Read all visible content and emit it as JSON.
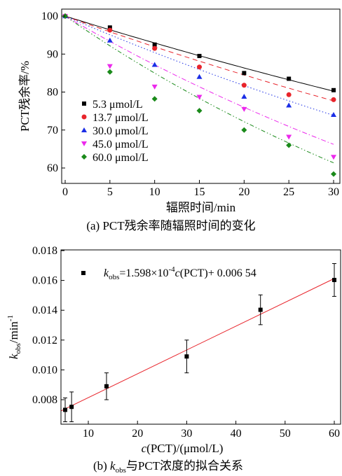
{
  "chart_data": [
    {
      "type": "scatter",
      "caption": "(a)  PCT残余率随辐照时间的变化",
      "xlabel": "辐照时间/min",
      "ylabel": "PCT残余率/%",
      "xlim": [
        0,
        30
      ],
      "ylim": [
        55,
        100
      ],
      "xticks": [
        "0",
        "5",
        "10",
        "15",
        "20",
        "25",
        "30"
      ],
      "yticks": [
        "60",
        "70",
        "80",
        "90",
        "100"
      ],
      "x": [
        0,
        5,
        10,
        15,
        20,
        25,
        30
      ],
      "legend_position": "lower-left",
      "series": [
        {
          "name": "5.3  μmol/L",
          "color": "#000000",
          "marker": "square",
          "line": "solid",
          "fit_k": 0.00734,
          "values": [
            100,
            97.0,
            92.5,
            89.5,
            85.0,
            83.5,
            80.5
          ]
        },
        {
          "name": "13.7  μmol/L",
          "color": "#e8242b",
          "marker": "circle",
          "line": "dash",
          "fit_k": 0.00842,
          "values": [
            100,
            96.3,
            91.5,
            86.6,
            81.8,
            79.3,
            78.0
          ]
        },
        {
          "name": "30.0  μmol/L",
          "color": "#1b2ee6",
          "marker": "triangle",
          "line": "dot",
          "fit_k": 0.0101,
          "values": [
            100,
            93.6,
            87.2,
            84.0,
            78.8,
            76.5,
            74.0
          ]
        },
        {
          "name": "45.0  μmol/L",
          "color": "#ec29ec",
          "marker": "tri-down",
          "line": "dashdot",
          "fit_k": 0.01373,
          "values": [
            100,
            86.8,
            81.4,
            78.7,
            75.5,
            68.2,
            62.9
          ]
        },
        {
          "name": "60.0  μmol/L",
          "color": "#1a8a1a",
          "marker": "diamond",
          "line": "dashdot2",
          "fit_k": 0.01628,
          "values": [
            100,
            85.3,
            78.2,
            75.1,
            70.0,
            66.0,
            58.4
          ]
        }
      ]
    },
    {
      "type": "scatter",
      "caption_prefix": "(b)  ",
      "caption_k": "k",
      "caption_sub": "obs",
      "caption_rest": "与PCT浓度的拟合关系",
      "xlabel_c": "c",
      "xlabel_rest": "(PCT)/(μmol/L)",
      "ylabel_k": "k",
      "ylabel_sub": "obs",
      "ylabel_unit": "/min",
      "ylabel_sup": "-1",
      "xlim": [
        3,
        61
      ],
      "ylim": [
        0.0068,
        0.018
      ],
      "xticks": [
        "10",
        "20",
        "30",
        "40",
        "50",
        "60"
      ],
      "yticks": [
        "0.008",
        "0.010",
        "0.012",
        "0.014",
        "0.016",
        "0.018"
      ],
      "legend": {
        "k": "k",
        "sub": "obs",
        "eq1": "=1.598×10",
        "sup": "-4",
        "c": "c",
        "eq2": "(PCT)+ 0.006 54"
      },
      "fit": {
        "slope": 0.0001598,
        "intercept": 0.00654,
        "color": "#e8242b"
      },
      "points": {
        "x": [
          5.3,
          6.6,
          13.7,
          30.0,
          45.0,
          60.0
        ],
        "y": [
          0.00732,
          0.00752,
          0.0089,
          0.0109,
          0.01403,
          0.01603
        ],
        "err": [
          0.0008,
          0.001,
          0.0009,
          0.0011,
          0.001,
          0.0011
        ]
      }
    }
  ]
}
